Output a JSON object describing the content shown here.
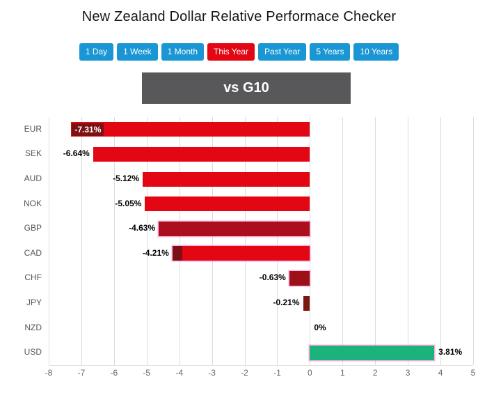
{
  "title": "New Zealand Dollar Relative Performace Checker",
  "tabs": [
    {
      "label": "1 Day",
      "active": false
    },
    {
      "label": "1 Week",
      "active": false
    },
    {
      "label": "1 Month",
      "active": false
    },
    {
      "label": "This Year",
      "active": true
    },
    {
      "label": "Past Year",
      "active": false
    },
    {
      "label": "5 Years",
      "active": false
    },
    {
      "label": "10 Years",
      "active": false
    }
  ],
  "banner": {
    "label": "vs G10"
  },
  "colors": {
    "tab_bg": "#1996d3",
    "tab_active_bg": "#e30613",
    "banner_bg": "#58585a",
    "negative": "#e30613",
    "positive": "#1cb27b",
    "dark_red": "#7a1114",
    "grid": "#dcdcdc",
    "axis_text": "#666666",
    "highlight_glow": "#ff6ec8"
  },
  "chart_data": {
    "type": "bar",
    "orientation": "horizontal",
    "title": "",
    "xlabel": "",
    "ylabel": "",
    "xlim": [
      -8,
      5
    ],
    "xticks": [
      -8,
      -7,
      -6,
      -5,
      -4,
      -3,
      -2,
      -1,
      0,
      1,
      2,
      3,
      4,
      5
    ],
    "categories": [
      "EUR",
      "SEK",
      "AUD",
      "NOK",
      "GBP",
      "CAD",
      "CHF",
      "JPY",
      "NZD",
      "USD"
    ],
    "values": [
      -7.31,
      -6.64,
      -5.12,
      -5.05,
      -4.63,
      -4.21,
      -0.63,
      -0.21,
      0,
      3.81
    ],
    "grid": true,
    "legend": "none",
    "bars": [
      {
        "category": "EUR",
        "value": -7.31,
        "label": "-7.31%",
        "fill": "#e30613",
        "label_inside": true,
        "label_bg": "#7a1114"
      },
      {
        "category": "SEK",
        "value": -6.64,
        "label": "-6.64%",
        "fill": "#e30613"
      },
      {
        "category": "AUD",
        "value": -5.12,
        "label": "-5.12%",
        "fill": "#e30613"
      },
      {
        "category": "NOK",
        "value": -5.05,
        "label": "-5.05%",
        "fill": "#e30613"
      },
      {
        "category": "GBP",
        "value": -4.63,
        "label": "-4.63%",
        "fill": "#ab0f1e",
        "glow": true
      },
      {
        "category": "CAD",
        "value": -4.21,
        "label": "-4.21%",
        "fill": "#e30613",
        "cap_units": 0.3,
        "cap_fill": "#7a1114",
        "glow": true
      },
      {
        "category": "CHF",
        "value": -0.63,
        "label": "-0.63%",
        "fill": "#9c1117",
        "glow": true
      },
      {
        "category": "JPY",
        "value": -0.21,
        "label": "-0.21%",
        "fill": "#7c190f"
      },
      {
        "category": "NZD",
        "value": 0,
        "label": "0%",
        "fill": "#e30613"
      },
      {
        "category": "USD",
        "value": 3.81,
        "label": "3.81%",
        "fill": "#1cb27b",
        "glow": true
      }
    ]
  }
}
